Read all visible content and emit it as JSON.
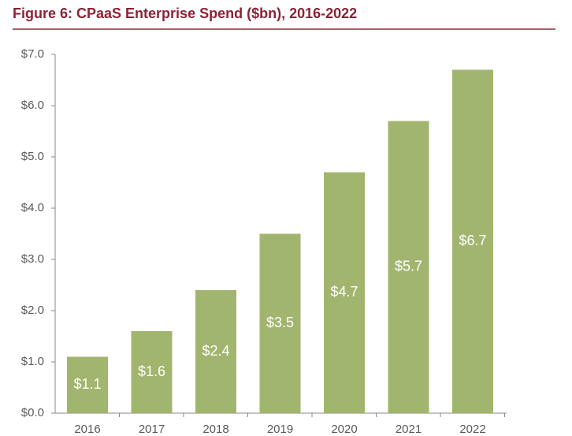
{
  "chart_data": {
    "type": "bar",
    "title": "Figure 6: CPaaS Enterprise Spend ($bn), 2016-2022",
    "categories": [
      "2016",
      "2017",
      "2018",
      "2019",
      "2020",
      "2021",
      "2022"
    ],
    "values": [
      1.1,
      1.6,
      2.4,
      3.5,
      4.7,
      5.7,
      6.7
    ],
    "value_labels": [
      "$1.1",
      "$1.6",
      "$2.4",
      "$3.5",
      "$4.7",
      "$5.7",
      "$6.7"
    ],
    "color": "#a2b56f",
    "ylim": [
      0,
      7
    ],
    "yticks": [
      {
        "value": 0,
        "label": "$0.0"
      },
      {
        "value": 1,
        "label": "$1.0"
      },
      {
        "value": 2,
        "label": "$2.0"
      },
      {
        "value": 3,
        "label": "$3.0"
      },
      {
        "value": 4,
        "label": "$4.0"
      },
      {
        "value": 5,
        "label": "$5.0"
      },
      {
        "value": 6,
        "label": "$6.0"
      },
      {
        "value": 7,
        "label": "$7.0"
      }
    ]
  }
}
